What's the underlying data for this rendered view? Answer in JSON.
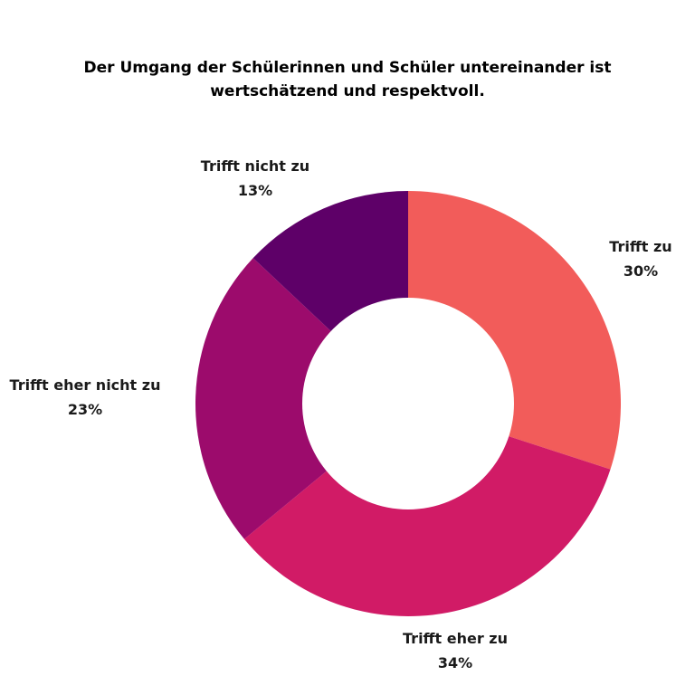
{
  "chart_data": {
    "type": "pie",
    "variant": "donut",
    "title": [
      "Der Umgang der Schülerinnen und Schüler untereinander ist",
      "wertschätzend und respektvoll."
    ],
    "slices": [
      {
        "label": "Trifft zu",
        "value": 30,
        "display": "30%",
        "color": "#f25c5a"
      },
      {
        "label": "Trifft eher zu",
        "value": 34,
        "display": "34%",
        "color": "#d11b66"
      },
      {
        "label": "Trifft eher nicht zu",
        "value": 23,
        "display": "23%",
        "color": "#9c0b6c"
      },
      {
        "label": "Trifft nicht zu",
        "value": 13,
        "display": "13%",
        "color": "#5e0068"
      }
    ],
    "start": "12 o'clock",
    "direction": "clockwise",
    "legend": "none",
    "labels": "outside, label above percentage"
  }
}
